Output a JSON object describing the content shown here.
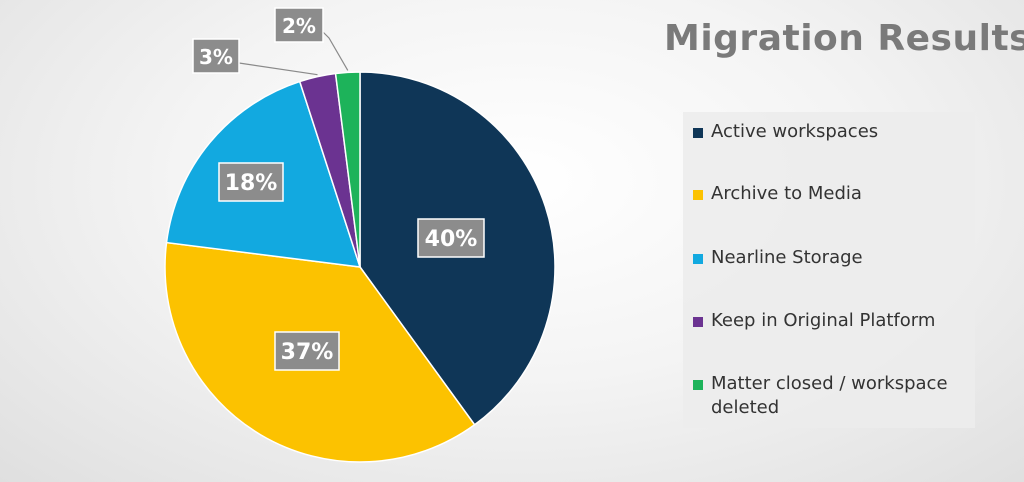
{
  "chart_data": {
    "type": "pie",
    "title": "Migration Results",
    "legend_position": "right",
    "categories": [
      "Active workspaces",
      "Archive to Media",
      "Nearline Storage",
      "Keep in Original Platform",
      "Matter closed / workspace deleted"
    ],
    "values": [
      40,
      37,
      18,
      3,
      2
    ],
    "data_labels": [
      "40%",
      "37%",
      "18%",
      "3%",
      "2%"
    ],
    "colors": [
      "#0f3657",
      "#fcc200",
      "#12a9e0",
      "#6b3391",
      "#1db35a"
    ]
  }
}
